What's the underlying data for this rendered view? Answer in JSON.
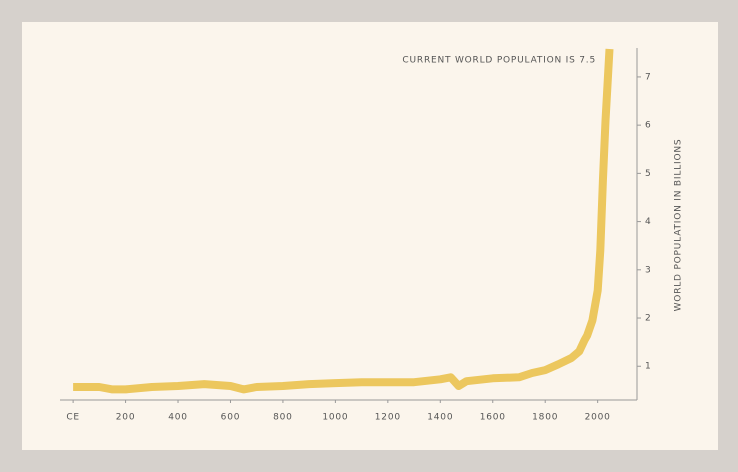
{
  "chart_data": {
    "type": "line",
    "annotation": "CURRENT WORLD POPULATION IS 7.5",
    "y_axis_label": "WORLD POPULATION IN BILLIONS",
    "x": [
      0,
      100,
      150,
      200,
      300,
      400,
      500,
      600,
      650,
      700,
      800,
      900,
      1000,
      1100,
      1200,
      1300,
      1400,
      1440,
      1470,
      1500,
      1600,
      1700,
      1750,
      1800,
      1850,
      1900,
      1930,
      1950,
      1960,
      1980,
      2000,
      2010,
      2020,
      2030,
      2045
    ],
    "series": [
      {
        "name": "World population",
        "color": "#ecc75e",
        "values": [
          0.57,
          0.57,
          0.52,
          0.52,
          0.57,
          0.59,
          0.63,
          0.59,
          0.52,
          0.57,
          0.59,
          0.63,
          0.65,
          0.67,
          0.67,
          0.67,
          0.73,
          0.77,
          0.59,
          0.69,
          0.75,
          0.77,
          0.86,
          0.92,
          1.04,
          1.17,
          1.31,
          1.54,
          1.64,
          1.95,
          2.57,
          3.4,
          4.85,
          6.09,
          7.58
        ]
      }
    ],
    "xlim": [
      -50,
      2150
    ],
    "xticks": [
      {
        "value": 0,
        "label": "CE"
      },
      200,
      400,
      600,
      800,
      1000,
      1200,
      1400,
      1600,
      1800,
      2000
    ],
    "ylim": [
      0.3,
      7.6
    ],
    "yticks": [
      1,
      2,
      3,
      4,
      5,
      6,
      7
    ]
  }
}
